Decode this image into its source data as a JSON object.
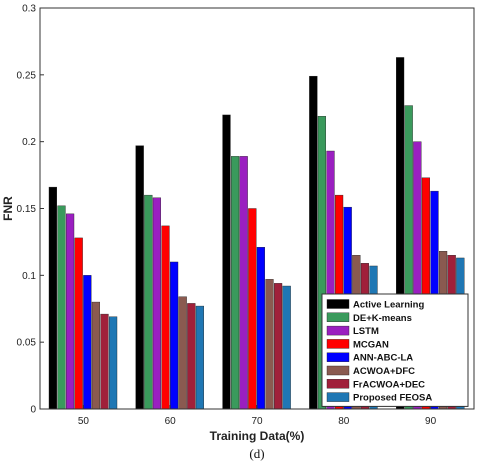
{
  "chart_data": {
    "type": "bar",
    "title": "",
    "xlabel": "Training Data(%)",
    "ylabel": "FNR",
    "ylim": [
      0,
      0.3
    ],
    "yticks": [
      "0",
      "0.05",
      "0.1",
      "0.15",
      "0.2",
      "0.25",
      "0.3"
    ],
    "categories": [
      "50",
      "60",
      "70",
      "80",
      "90"
    ],
    "grid": false,
    "legend_position": "bottom-right",
    "series": [
      {
        "name": "Active Learning",
        "color": "#000000",
        "values": [
          0.166,
          0.197,
          0.22,
          0.249,
          0.263
        ]
      },
      {
        "name": "DE+K-means",
        "color": "#3a9a5c",
        "values": [
          0.152,
          0.16,
          0.189,
          0.219,
          0.227
        ]
      },
      {
        "name": "LSTM",
        "color": "#9a1fc0",
        "values": [
          0.146,
          0.158,
          0.189,
          0.193,
          0.2
        ]
      },
      {
        "name": "MCGAN",
        "color": "#ff0000",
        "values": [
          0.128,
          0.137,
          0.15,
          0.16,
          0.173
        ]
      },
      {
        "name": "ANN-ABC-LA",
        "color": "#0000ff",
        "values": [
          0.1,
          0.11,
          0.121,
          0.151,
          0.163
        ]
      },
      {
        "name": "ACWOA+DFC",
        "color": "#8a5a50",
        "values": [
          0.08,
          0.084,
          0.097,
          0.115,
          0.118
        ]
      },
      {
        "name": "FrACWOA+DEC",
        "color": "#a0203a",
        "values": [
          0.071,
          0.079,
          0.094,
          0.109,
          0.115
        ]
      },
      {
        "name": "Proposed FEOSA",
        "color": "#1f77b4",
        "values": [
          0.069,
          0.077,
          0.092,
          0.107,
          0.113
        ]
      }
    ]
  },
  "caption": "(d)"
}
